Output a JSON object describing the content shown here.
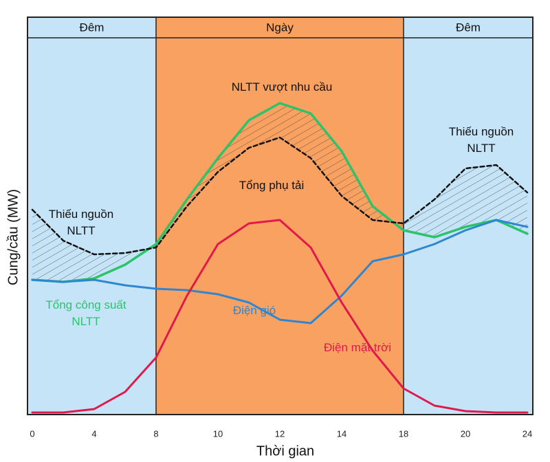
{
  "chart_data": {
    "type": "line",
    "x_label": "Thời gian",
    "y_label": "Cung/cầu (MW)",
    "x": [
      0,
      2,
      4,
      6,
      8,
      9,
      10,
      11,
      12,
      13,
      14,
      16,
      18,
      19,
      20,
      22,
      24
    ],
    "xlim": [
      0,
      24
    ],
    "xticks": [
      0,
      4,
      8,
      10,
      12,
      14,
      18,
      20,
      24
    ],
    "ylim": [
      0,
      100
    ],
    "regions": [
      {
        "label": "Đêm",
        "start": 0,
        "end": 8,
        "color": "#c6e4f7"
      },
      {
        "label": "Ngày",
        "start": 8,
        "end": 18,
        "color": "#f9a160"
      },
      {
        "label": "Đêm",
        "start": 18,
        "end": 24,
        "color": "#c6e4f7"
      }
    ],
    "series": [
      {
        "name": "Tổng công suất NLTT",
        "color": "#2cc36b",
        "values": [
          38.6,
          38,
          39,
          43,
          49,
          62,
          74,
          85,
          90,
          87,
          76,
          60,
          53,
          51,
          54,
          56,
          52
        ]
      },
      {
        "name": "Tổng phụ tải",
        "color": "#111111",
        "dashed": true,
        "values": [
          59,
          50,
          46,
          46.4,
          48,
          60,
          70,
          77,
          80,
          74,
          63,
          56,
          55,
          62,
          71,
          72,
          64
        ]
      },
      {
        "name": "Điện gió",
        "color": "#2f86d0",
        "values": [
          38.6,
          38,
          38.6,
          37,
          36,
          35.6,
          34.4,
          32,
          27,
          26,
          34,
          44,
          46,
          49,
          53,
          56,
          54
        ]
      },
      {
        "name": "Điện mặt trời",
        "color": "#e0194a",
        "values": [
          0,
          0,
          1,
          6,
          16,
          34,
          49,
          55,
          56,
          48,
          32,
          18,
          7,
          2,
          0.4,
          0,
          0
        ]
      }
    ],
    "annotations": [
      "NLTT vượt nhu cầu",
      "Thiếu nguồn NLTT",
      "Thiếu nguồn NLTT"
    ]
  }
}
